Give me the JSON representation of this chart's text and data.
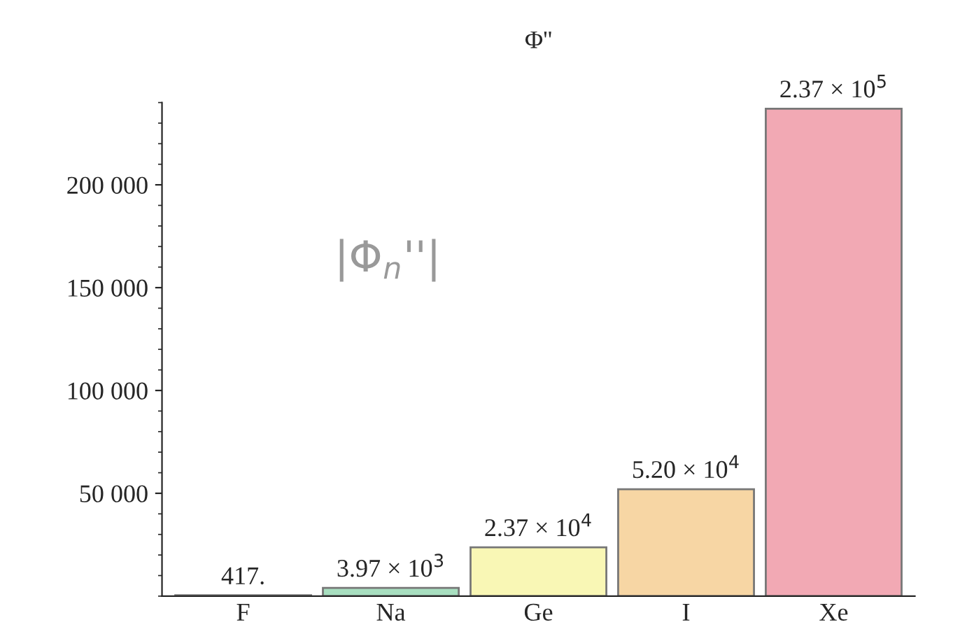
{
  "chart_data": {
    "type": "bar",
    "title": "Φ''",
    "categories": [
      "F",
      "Na",
      "Ge",
      "I",
      "Xe"
    ],
    "values": [
      417,
      3970,
      23700,
      52000,
      237000
    ],
    "value_labels": [
      "417.",
      "3.97 × 10$^{3}$",
      "2.37 × 10$^{4}$",
      "5.20 × 10$^{4}$",
      "2.37 × 10$^{5}$"
    ],
    "colors": [
      "#b0b0b0",
      "#a8dfc0",
      "#f9f7b5",
      "#f7d6a4",
      "#f2a9b4"
    ],
    "ylim": [
      0,
      240000
    ],
    "yticks": [
      {
        "value": 50000,
        "label": "50 000"
      },
      {
        "value": 100000,
        "label": "100 000"
      },
      {
        "value": 150000,
        "label": "150 000"
      },
      {
        "value": 200000,
        "label": "200 000"
      }
    ],
    "annotations": [
      "|Φ$_{n}$''|"
    ],
    "grid": false
  }
}
